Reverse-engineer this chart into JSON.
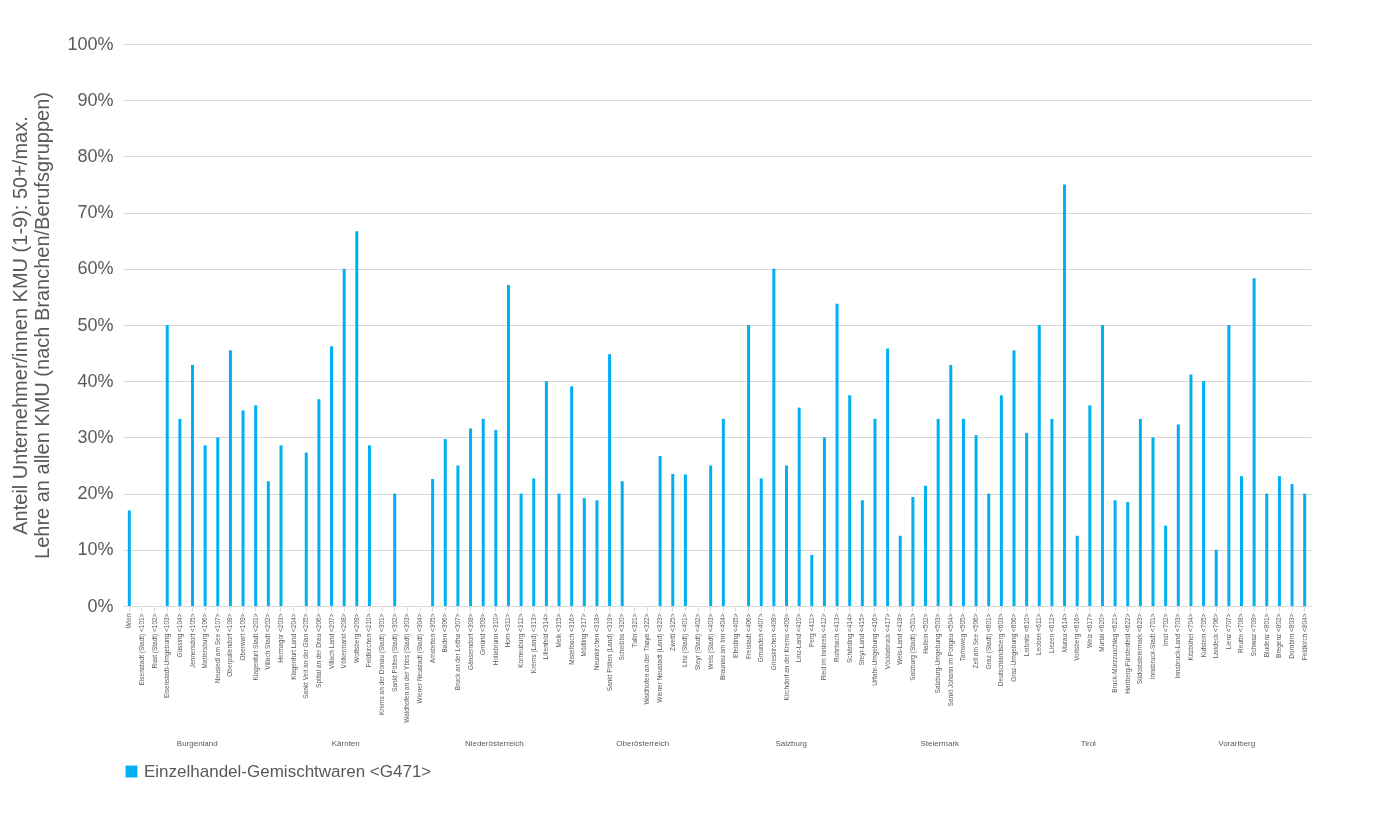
{
  "chart_data": {
    "type": "bar",
    "ylabel": "Anteil Unternehmer/innen KMU (1-9): 50+/max. Lehre an allen KMU (nach Branchen/Berufsgruppen)",
    "categories": [
      "Wien",
      "Eisenstadt (Stadt) <101>",
      "Rust (Stadt) <102>",
      "Eisenstadt-Umgebung <103>",
      "Güssing <104>",
      "Jennersdorf <105>",
      "Mattersburg <106>",
      "Neusiedl am See <107>",
      "Oberpullendorf <108>",
      "Oberwart <109>",
      "Klagenfurt Stadt <201>",
      "Villach Stadt <202>",
      "Hermagor <203>",
      "Klagenfurt Land <204>",
      "Sankt Veit an der Glan <205>",
      "Spittal an der Drau <206>",
      "Villach Land <207>",
      "Völkermarkt <208>",
      "Wolfsberg <209>",
      "Feldkirchen <210>",
      "Krems an der Donau (Stadt) <301>",
      "Sankt Pölten (Stadt) <302>",
      "Waidhofen an der Ybbs (Stadt) <303>",
      "Wiener Neustadt (Stadt) <304>",
      "Amstetten <305>",
      "Baden <306>",
      "Bruck an der Leitha <307>",
      "Gänserndorf <308>",
      "Gmünd <309>",
      "Hollabrunn <310>",
      "Horn <311>",
      "Korneuburg <312>",
      "Krems (Land) <313>",
      "Lilienfeld <314>",
      "Melk <315>",
      "Mistelbach <316>",
      "Mödling <317>",
      "Neunkirchen <318>",
      "Sankt Pölten (Land) <319>",
      "Scheibbs <320>",
      "Tulln <321>",
      "Waidhofen an der Thaya <322>",
      "Wiener Neustadt (Land) <323>",
      "Zwettl <325>",
      "Linz (Stadt) <401>",
      "Steyr (Stadt) <402>",
      "Wels (Stadt) <403>",
      "Braunau am Inn <404>",
      "Eferding <405>",
      "Freistadt <406>",
      "Gmunden <407>",
      "Grieskirchen <408>",
      "Kirchdorf an der Krems <409>",
      "Linz-Land <410>",
      "Perg <411>",
      "Ried im Innkreis <412>",
      "Rohrbach <413>",
      "Schärding <414>",
      "Steyr-Land <415>",
      "Urfahr-Umgebung <416>",
      "Vöcklabruck <417>",
      "Wels-Land <418>",
      "Salzburg (Stadt) <501>",
      "Hallein <502>",
      "Salzburg-Umgebung <503>",
      "Sankt Johann im Pongau <504>",
      "Tamsweg <505>",
      "Zell am See <506>",
      "Graz (Stadt) <601>",
      "Deutschlandsberg <603>",
      "Graz-Umgebung <606>",
      "Leibnitz <610>",
      "Leoben <611>",
      "Liezen <612>",
      "Murau <614>",
      "Voitsberg <616>",
      "Weiz <617>",
      "Murtal <620>",
      "Bruck-Mürzzuschlag <621>",
      "Hartberg-Fürstenfeld <622>",
      "Südoststeiermark <623>",
      "Innsbruck-Stadt <701>",
      "Imst <702>",
      "Innsbruck-Land <703>",
      "Kitzbühel <704>",
      "Kufstein <705>",
      "Landeck <706>",
      "Lienz <707>",
      "Reutte <708>",
      "Schwaz <709>",
      "Bludenz <801>",
      "Bregenz <802>",
      "Dornbirn <803>",
      "Feldkirch <804>"
    ],
    "series": [
      {
        "name": "Einzelhandel-Gemischtwaren <G471>",
        "color": "#00b0f0",
        "values": [
          17,
          0,
          0,
          50,
          33.3,
          42.9,
          28.6,
          30,
          45.5,
          34.8,
          35.7,
          22.2,
          28.6,
          0,
          27.3,
          36.8,
          46.2,
          60,
          66.7,
          28.6,
          0,
          20,
          0,
          0,
          22.6,
          29.7,
          25,
          31.6,
          33.3,
          31.3,
          57.1,
          20,
          22.7,
          40,
          20,
          39.1,
          19.2,
          18.8,
          44.8,
          22.2,
          0,
          0,
          26.7,
          23.5,
          23.4,
          0,
          25,
          33.3,
          0,
          50,
          22.7,
          60,
          25,
          35.3,
          9.1,
          30,
          53.8,
          37.5,
          18.8,
          33.3,
          45.8,
          12.5,
          19.4,
          21.4,
          33.3,
          42.9,
          33.3,
          30.4,
          20,
          37.5,
          45.5,
          30.8,
          50,
          33.3,
          75,
          12.5,
          35.7,
          50,
          18.8,
          18.5,
          33.3,
          30,
          14.3,
          32.3,
          41.2,
          40,
          10,
          50,
          23.1,
          58.3,
          20,
          23.1,
          21.7,
          20
        ]
      }
    ],
    "ylim": [
      0,
      100
    ],
    "yticks": [
      {
        "value": 0,
        "label": "0%"
      },
      {
        "value": 10,
        "label": "10%"
      },
      {
        "value": 20,
        "label": "20%"
      },
      {
        "value": 30,
        "label": "30%"
      },
      {
        "value": 40,
        "label": "40%"
      },
      {
        "value": 50,
        "label": "50%"
      },
      {
        "value": 60,
        "label": "60%"
      },
      {
        "value": 70,
        "label": "70%"
      },
      {
        "value": 80,
        "label": "80%"
      },
      {
        "value": 90,
        "label": "90%"
      },
      {
        "value": 100,
        "label": "100%"
      }
    ],
    "grid": "y",
    "legend": "bottom",
    "annotations": [
      "Burgenland",
      "Kärnten",
      "Niederösterreich",
      "Oberösterreich",
      "Salzburg",
      "Steiermark",
      "Tirol",
      "Vorarlberg"
    ]
  }
}
